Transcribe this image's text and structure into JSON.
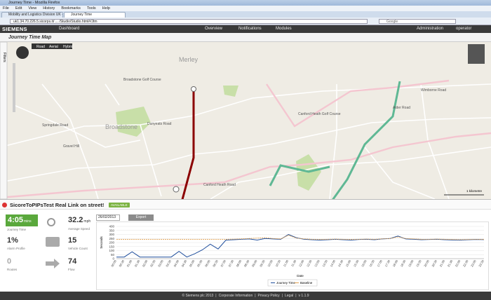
{
  "browser": {
    "window_title": "Journey Time - Mozilla Firefox",
    "menu": [
      "File",
      "Edit",
      "View",
      "History",
      "Bookmarks",
      "Tools",
      "Help"
    ],
    "tabs": [
      "Mobility and Logistics Division UK - Siemens",
      "Journey Time"
    ],
    "url": "uk1.34.70.226.5.sicorps.it/ ... /Studio/Studio.html#/Jtm",
    "search": "Google"
  },
  "app": {
    "brand": "SIEMENS",
    "nav": [
      "Dashboard",
      "Overview",
      "Notifications",
      "Modules"
    ],
    "admin": "Administration",
    "user": "operator",
    "page_title": "Journey Time Map"
  },
  "map": {
    "filters": "Filters",
    "map_types": [
      "Road",
      "Aerial",
      "Hybrid"
    ],
    "scale": "1 kilometre",
    "labels": [
      "Merley",
      "Broadstone",
      "Broadstone Golf Course",
      "Canford Heath Road",
      "Dunyeats Road",
      "Gravel Hill",
      "Canford Heath Golf Course",
      "Alder Road",
      "Springdale Road",
      "Wimborne Road"
    ]
  },
  "panel": {
    "link_name": "SicoreToPIPsTest",
    "link_desc": "Real Link on street!",
    "status": "AVAILABLE",
    "stats": [
      {
        "value": "4:05",
        "unit": "mins",
        "label": "Journey Time"
      },
      {
        "value": "32.2",
        "unit": "mph",
        "label": "Average Speed"
      },
      {
        "value": "1%",
        "label": "Alarm Profile"
      },
      {
        "value": "15",
        "label": "Vehicle Count"
      },
      {
        "value": "0",
        "label": "Routes"
      },
      {
        "value": "74",
        "label": "Flow"
      }
    ],
    "date": "26/02/2013",
    "export": "Export"
  },
  "chart": {
    "type": "line",
    "y_label": "Seconds",
    "x_label": "Date",
    "categories": [
      "00:00",
      "00:30",
      "01:00",
      "01:30",
      "02:00",
      "02:30",
      "03:00",
      "03:30",
      "04:00",
      "04:30",
      "05:00",
      "05:30",
      "06:00",
      "06:30",
      "07:00",
      "07:30",
      "08:00",
      "08:30",
      "09:00",
      "09:30",
      "10:00",
      "10:30",
      "11:00",
      "11:30",
      "12:00",
      "12:30",
      "13:00",
      "13:30",
      "14:00",
      "14:30",
      "15:00",
      "15:30",
      "16:00",
      "16:30",
      "17:00",
      "17:30",
      "18:00",
      "18:30",
      "19:00",
      "19:30",
      "20:00",
      "20:30",
      "21:00",
      "21:30",
      "22:00",
      "22:30",
      "23:00",
      "23:30"
    ],
    "series": [
      {
        "name": "Journey Time",
        "color": "#1f4e9c",
        "values": [
          20,
          20,
          85,
          20,
          20,
          20,
          20,
          20,
          90,
          20,
          60,
          110,
          180,
          120,
          230,
          235,
          240,
          245,
          230,
          250,
          245,
          240,
          300,
          260,
          240,
          235,
          230,
          235,
          240,
          235,
          230,
          238,
          240,
          235,
          245,
          250,
          280,
          245,
          240,
          235,
          238,
          240,
          235,
          232,
          230,
          235,
          238,
          236
        ]
      },
      {
        "name": "Baseline",
        "color": "#e0a050",
        "values": [
          240,
          240,
          240,
          240,
          240,
          240,
          240,
          240,
          240,
          240,
          240,
          240,
          240,
          240,
          240,
          242,
          245,
          250,
          255,
          260,
          250,
          245,
          290,
          255,
          245,
          240,
          238,
          240,
          242,
          240,
          238,
          240,
          242,
          240,
          245,
          250,
          270,
          250,
          245,
          240,
          240,
          242,
          240,
          238,
          236,
          238,
          240,
          238
        ]
      }
    ],
    "ylim": [
      0,
      400
    ],
    "yticks": [
      0,
      50,
      100,
      150,
      200,
      250,
      300,
      350,
      400
    ],
    "grid": true
  },
  "footer": [
    "© Siemens plc 2013",
    "Corporate Information",
    "Privacy Policy",
    "Legal",
    "v 1.1.9"
  ]
}
